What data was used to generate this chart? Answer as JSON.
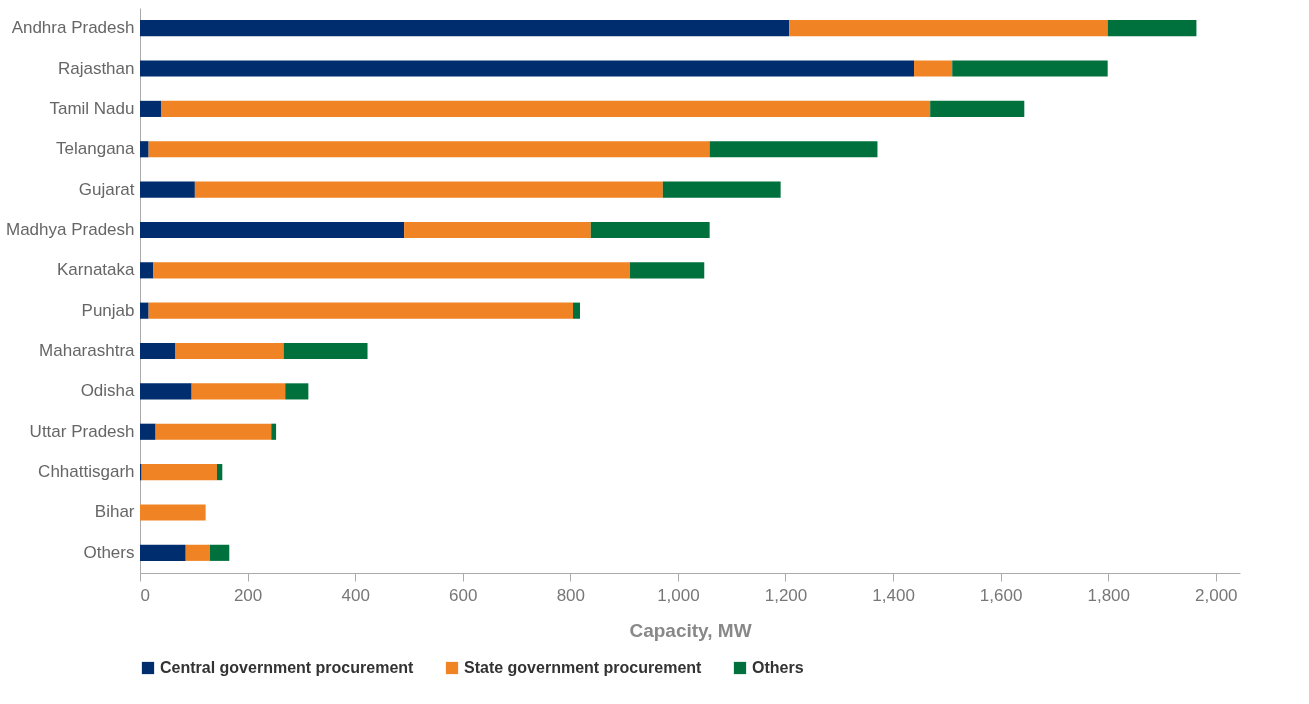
{
  "chart_data": {
    "type": "bar",
    "orientation": "horizontal",
    "stacked": true,
    "xlabel": "Capacity, MW",
    "categories": [
      "Andhra Pradesh",
      "Rajasthan",
      "Tamil Nadu",
      "Telangana",
      "Gujarat",
      "Madhya Pradesh",
      "Karnataka",
      "Punjab",
      "Maharashtra",
      "Odisha",
      "Uttar Pradesh",
      "Chhattisgarh",
      "Bihar",
      "Others"
    ],
    "series": [
      {
        "name": "Central government procurement",
        "color": "#002d6e",
        "values": [
          1207,
          1439,
          39,
          16,
          102,
          491,
          25,
          16,
          66,
          96,
          29,
          3,
          0,
          85
        ]
      },
      {
        "name": "State government procurement",
        "color": "#f08323",
        "values": [
          592,
          71,
          1430,
          1043,
          870,
          347,
          886,
          789,
          201,
          174,
          215,
          140,
          122,
          45
        ]
      },
      {
        "name": "Others",
        "color": "#00703c",
        "values": [
          165,
          289,
          175,
          312,
          219,
          221,
          138,
          13,
          156,
          43,
          9,
          10,
          0,
          36
        ]
      }
    ],
    "xlim": [
      0,
      2045
    ],
    "xticks": [
      0,
      {
        "value": 200,
        "label": "200"
      },
      {
        "value": 400,
        "label": "400"
      },
      {
        "value": 600,
        "label": "600"
      },
      {
        "value": 800,
        "label": "800"
      },
      {
        "value": 1000,
        "label": "1,000"
      },
      {
        "value": 1200,
        "label": "1,200"
      },
      {
        "value": 1400,
        "label": "1,400"
      },
      {
        "value": 1600,
        "label": "1,600"
      },
      {
        "value": 1800,
        "label": "1,800"
      },
      {
        "value": 2000,
        "label": "2,000"
      }
    ],
    "grid": false,
    "legend": "bottom"
  }
}
